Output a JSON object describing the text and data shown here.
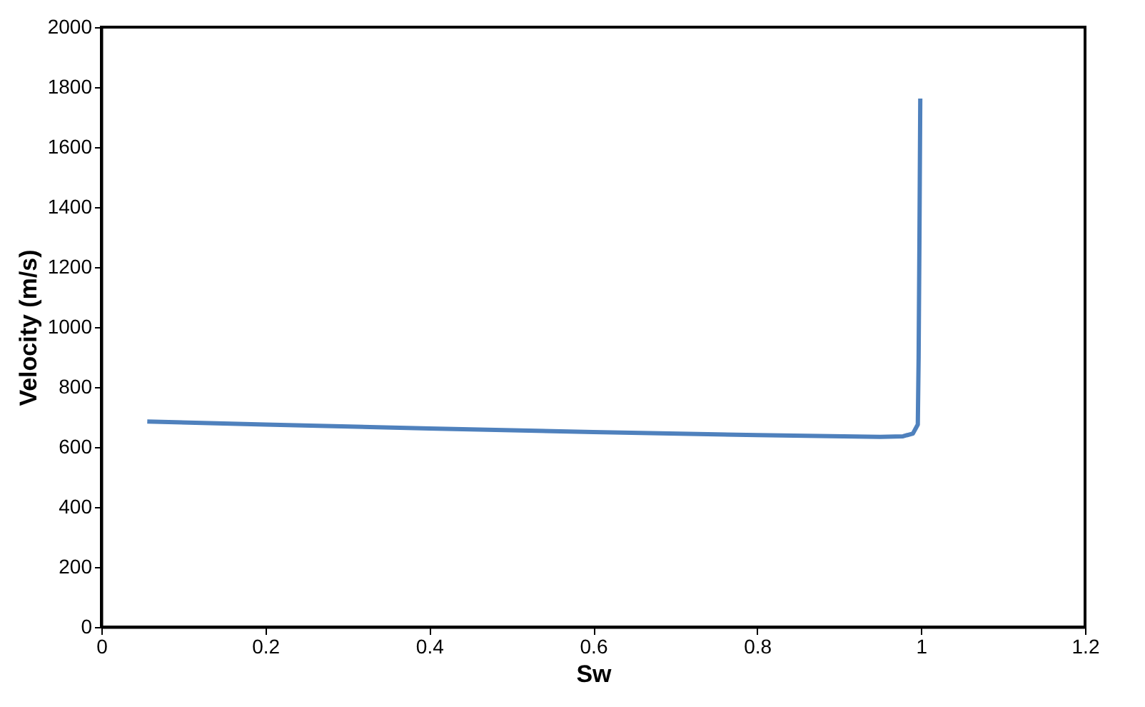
{
  "chart_data": {
    "type": "line",
    "xlabel": "Sw",
    "ylabel": "Velocity (m/s)",
    "xlim": [
      0,
      1.2
    ],
    "xticks": [
      0,
      0.2,
      0.4,
      0.6,
      0.8,
      1,
      1.2
    ],
    "ylim": [
      0,
      2000
    ],
    "yticks": [
      0,
      200,
      400,
      600,
      800,
      1000,
      1200,
      1400,
      1600,
      1800,
      2000
    ],
    "grid": false,
    "marker": "none",
    "line_style": "solid",
    "series": [
      {
        "color": "#4f81bd",
        "x": [
          0.056,
          0.2,
          0.4,
          0.6,
          0.8,
          0.95,
          0.978,
          0.99,
          0.996,
          0.997,
          0.998,
          0.999
        ],
        "values": [
          685,
          675,
          662,
          650,
          640,
          634,
          636,
          645,
          675,
          900,
          1300,
          1762
        ]
      }
    ]
  }
}
